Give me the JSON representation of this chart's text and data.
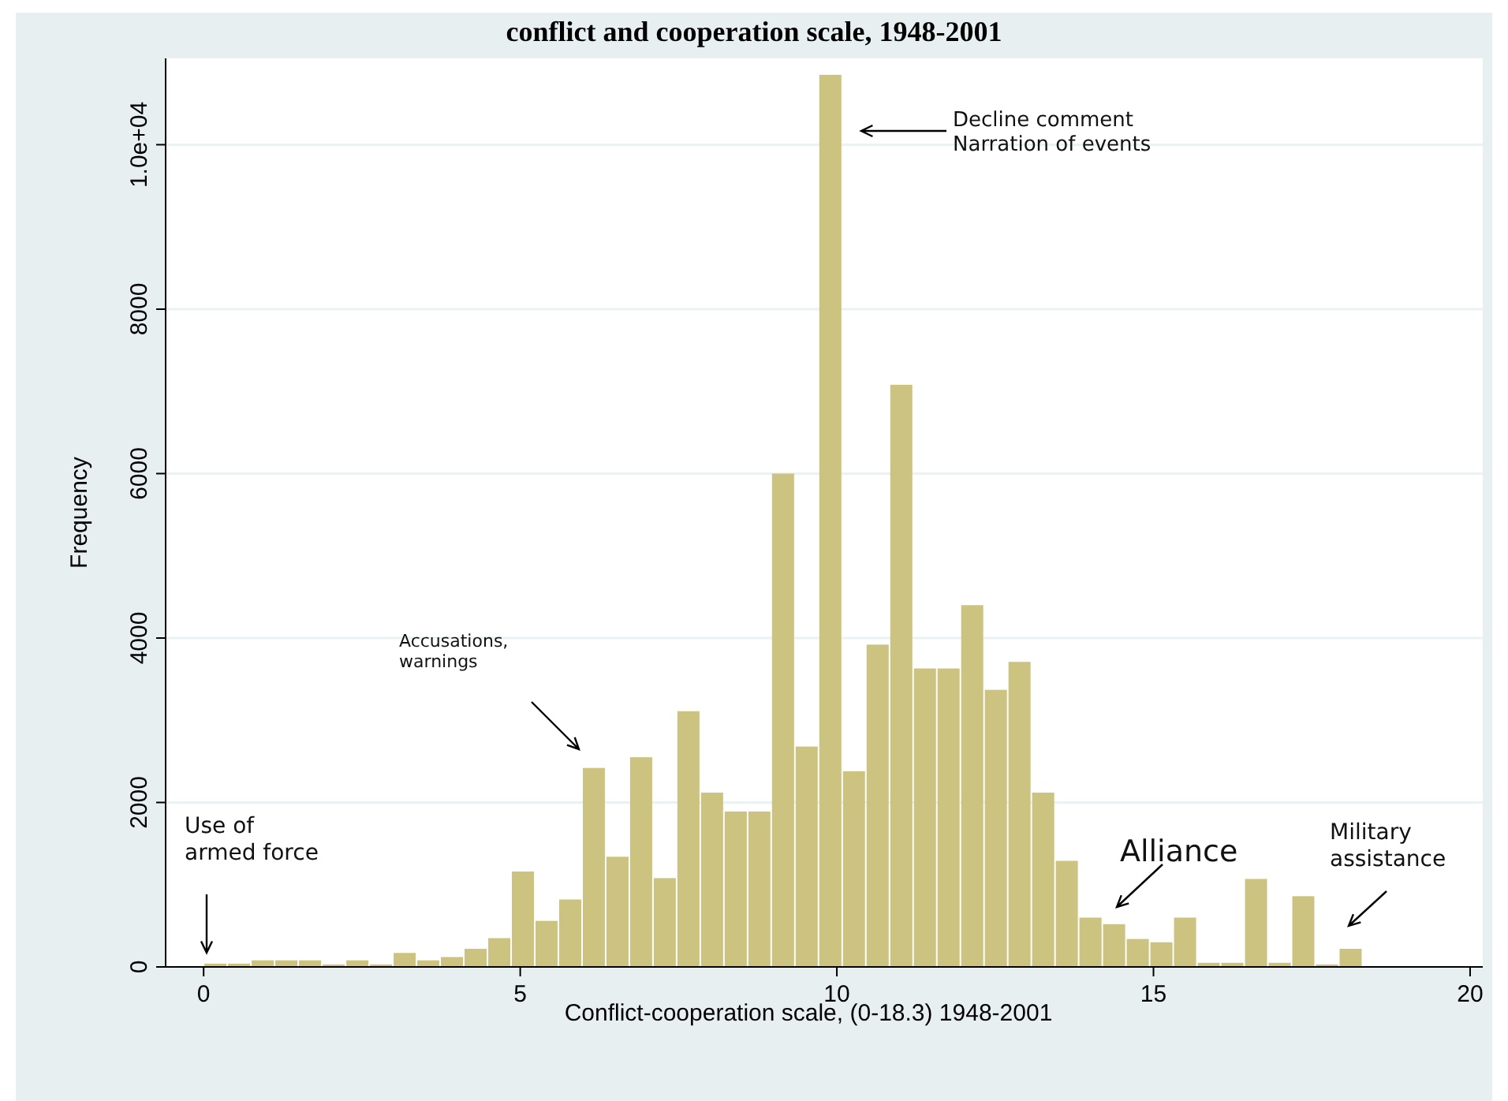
{
  "chart_data": {
    "type": "histogram",
    "title": "conflict and cooperation scale, 1948-2001",
    "xlabel": "Conflict-cooperation scale, (0-18.3) 1948-2001",
    "ylabel": "Frequency",
    "bins": [
      0,
      0.373,
      0.747,
      1.12,
      1.494,
      1.867,
      2.241,
      2.614,
      2.988,
      3.361,
      3.735,
      4.108,
      4.482,
      4.855,
      5.229,
      5.602,
      5.976,
      6.349,
      6.722,
      7.096,
      7.469,
      7.843,
      8.216,
      8.59,
      8.963,
      9.337,
      9.71,
      10.084,
      10.457,
      10.831,
      11.204,
      11.578,
      11.951,
      12.324,
      12.698,
      13.071,
      13.445,
      13.818,
      14.192,
      14.565,
      14.939,
      15.312,
      15.686,
      16.059,
      16.433,
      16.806,
      17.18,
      17.553,
      17.927,
      18.3
    ],
    "values": [
      40,
      40,
      80,
      80,
      80,
      30,
      80,
      30,
      170,
      80,
      120,
      220,
      350,
      1160,
      560,
      820,
      2420,
      1340,
      2550,
      1080,
      3110,
      2120,
      1890,
      1890,
      6000,
      2680,
      10850,
      2380,
      3920,
      7080,
      3630,
      3630,
      4400,
      3370,
      3710,
      2120,
      1290,
      600,
      520,
      340,
      300,
      600,
      50,
      50,
      1070,
      50,
      860,
      30,
      220
    ],
    "color": "#cbc37f",
    "xlim": [
      -0.6,
      20.2
    ],
    "xticks": [
      0,
      5,
      10,
      15,
      20
    ],
    "ylim": [
      0,
      11050
    ],
    "yticks": [
      0,
      2000,
      4000,
      6000,
      8000,
      {
        "value": 10000,
        "label": "1.0e+04"
      }
    ],
    "grid": "y",
    "annotations": [
      "Use of\narmed force",
      "Accusations,\nwarnings",
      "Decline comment\nNarration of events",
      "Alliance",
      "Military\nassistance"
    ]
  }
}
